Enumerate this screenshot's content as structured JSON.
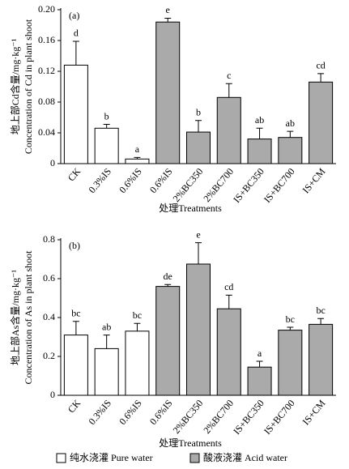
{
  "chart_data": [
    {
      "type": "bar",
      "panel_label": "(a)",
      "y_label": "地上部Cd含量/mg·kg⁻¹",
      "y_label_2": "Concentration of Cd in plant shoot",
      "x_label": "处理Treatments",
      "categories": [
        "CK",
        "0.3%IS",
        "0.6%IS",
        "0.6%IS",
        "2%BC350",
        "2%BC700",
        "IS+BC350",
        "IS+BC700",
        "IS+CM"
      ],
      "values": [
        0.128,
        0.046,
        0.006,
        0.184,
        0.041,
        0.086,
        0.032,
        0.034,
        0.106
      ],
      "errors": [
        0.031,
        0.005,
        0.002,
        0.005,
        0.015,
        0.018,
        0.014,
        0.008,
        0.011
      ],
      "letters": [
        "d",
        "b",
        "a",
        "e",
        "b",
        "c",
        "ab",
        "ab",
        "cd"
      ],
      "colors": [
        "#ffffff",
        "#ffffff",
        "#ffffff",
        "#aaaaaa",
        "#aaaaaa",
        "#aaaaaa",
        "#aaaaaa",
        "#aaaaaa",
        "#aaaaaa"
      ],
      "ylim": [
        0,
        0.2
      ],
      "yticks": [
        0,
        0.04,
        0.08,
        0.12,
        0.16,
        {
          "value": 0.2,
          "label": "0.20"
        }
      ]
    },
    {
      "type": "bar",
      "panel_label": "(b)",
      "y_label": "地上部As含量/mg·kg⁻¹",
      "y_label_2": "Concentration of As in plant shoot",
      "x_label": "处理Treatments",
      "categories": [
        "CK",
        "0.3%IS",
        "0.6%IS",
        "0.6%IS",
        "2%BC350",
        "2%BC700",
        "IS+BC350",
        "IS+BC700",
        "IS+CM"
      ],
      "values": [
        0.31,
        0.24,
        0.33,
        0.56,
        0.675,
        0.445,
        0.145,
        0.335,
        0.365
      ],
      "errors": [
        0.07,
        0.07,
        0.04,
        0.01,
        0.11,
        0.07,
        0.03,
        0.015,
        0.03
      ],
      "letters": [
        "bc",
        "ab",
        "bc",
        "de",
        "e",
        "cd",
        "a",
        "bc",
        "bc"
      ],
      "colors": [
        "#ffffff",
        "#ffffff",
        "#ffffff",
        "#aaaaaa",
        "#aaaaaa",
        "#aaaaaa",
        "#aaaaaa",
        "#aaaaaa",
        "#aaaaaa"
      ],
      "ylim": [
        0,
        0.8
      ],
      "yticks": [
        0,
        0.2,
        0.4,
        0.6,
        0.8
      ]
    }
  ],
  "legend": [
    {
      "label": "纯水浇灌 Pure water",
      "color": "#ffffff"
    },
    {
      "label": "酸液浇灌 Acid water",
      "color": "#aaaaaa"
    }
  ]
}
